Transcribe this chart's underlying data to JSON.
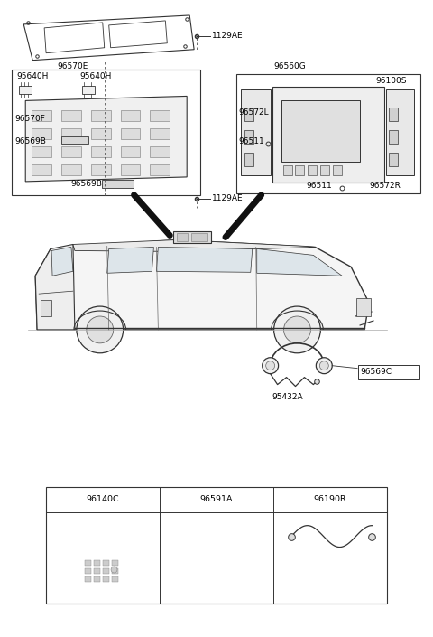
{
  "bg_color": "#ffffff",
  "line_color": "#333333",
  "text_color": "#000000",
  "labels": {
    "top_panel": "96570E",
    "bolt1": "1129AE",
    "bolt2": "1129AE",
    "left_box": [
      "95640H",
      "95640H",
      "96570F",
      "96569B",
      "96569B"
    ],
    "right_box_title": "96560G",
    "right_box": [
      "96100S",
      "96572L",
      "96511",
      "96511",
      "96572R"
    ],
    "headphone": [
      "95432A",
      "96569C"
    ],
    "table": [
      "96140C",
      "96591A",
      "96190R"
    ]
  }
}
